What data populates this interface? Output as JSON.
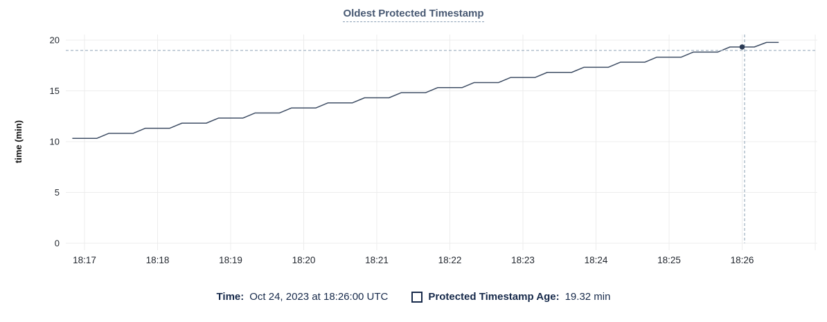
{
  "title": "Oldest Protected Timestamp",
  "legend": {
    "time_label": "Time:",
    "time_value": "Oct 24, 2023 at 18:26:00 UTC",
    "series_label": "Protected Timestamp Age:",
    "series_value": "19.32 min"
  },
  "chart_data": {
    "type": "line",
    "title": "Oldest Protected Timestamp",
    "xlabel": "",
    "ylabel": "time (min)",
    "ylim": [
      0,
      20
    ],
    "yticks": [
      0,
      5,
      10,
      15,
      20
    ],
    "xticks": [
      "18:17",
      "18:18",
      "18:19",
      "18:20",
      "18:21",
      "18:22",
      "18:23",
      "18:24",
      "18:25",
      "18:26"
    ],
    "grid": true,
    "legend_position": "bottom",
    "series": [
      {
        "name": "Protected Timestamp Age",
        "unit": "min",
        "color": "#3e4d64",
        "points": [
          [
            "18:16:50",
            10.32
          ],
          [
            "18:17:10",
            10.32
          ],
          [
            "18:17:20",
            10.82
          ],
          [
            "18:17:40",
            10.82
          ],
          [
            "18:17:50",
            11.32
          ],
          [
            "18:18:10",
            11.32
          ],
          [
            "18:18:20",
            11.82
          ],
          [
            "18:18:40",
            11.82
          ],
          [
            "18:18:50",
            12.32
          ],
          [
            "18:19:10",
            12.32
          ],
          [
            "18:19:20",
            12.82
          ],
          [
            "18:19:40",
            12.82
          ],
          [
            "18:19:50",
            13.32
          ],
          [
            "18:20:10",
            13.32
          ],
          [
            "18:20:20",
            13.82
          ],
          [
            "18:20:40",
            13.82
          ],
          [
            "18:20:50",
            14.32
          ],
          [
            "18:21:10",
            14.32
          ],
          [
            "18:21:20",
            14.82
          ],
          [
            "18:21:40",
            14.82
          ],
          [
            "18:21:50",
            15.32
          ],
          [
            "18:22:10",
            15.32
          ],
          [
            "18:22:20",
            15.82
          ],
          [
            "18:22:40",
            15.82
          ],
          [
            "18:22:50",
            16.32
          ],
          [
            "18:23:10",
            16.32
          ],
          [
            "18:23:20",
            16.82
          ],
          [
            "18:23:40",
            16.82
          ],
          [
            "18:23:50",
            17.32
          ],
          [
            "18:24:10",
            17.32
          ],
          [
            "18:24:20",
            17.82
          ],
          [
            "18:24:40",
            17.82
          ],
          [
            "18:24:50",
            18.32
          ],
          [
            "18:25:10",
            18.32
          ],
          [
            "18:25:20",
            18.82
          ],
          [
            "18:25:40",
            18.82
          ],
          [
            "18:25:50",
            19.32
          ],
          [
            "18:26:10",
            19.32
          ],
          [
            "18:26:20",
            19.77
          ],
          [
            "18:26:30",
            19.77
          ]
        ]
      }
    ],
    "hover": {
      "tooltip_time": "Oct 24, 2023 at 18:26:00 UTC",
      "point_time": "18:26:00",
      "point_value": 19.32,
      "crosshair_time": "18:26:02",
      "crosshair_value": 18.98
    },
    "colors": {
      "line": "#3e4d64",
      "dot": "#2b3a54",
      "grid": "#ececec",
      "crosshair": "#a4b4c3",
      "axis_text": "#1f242c",
      "axis_title": "#111111",
      "title": "#475872",
      "legend_text": "#16294a"
    }
  }
}
